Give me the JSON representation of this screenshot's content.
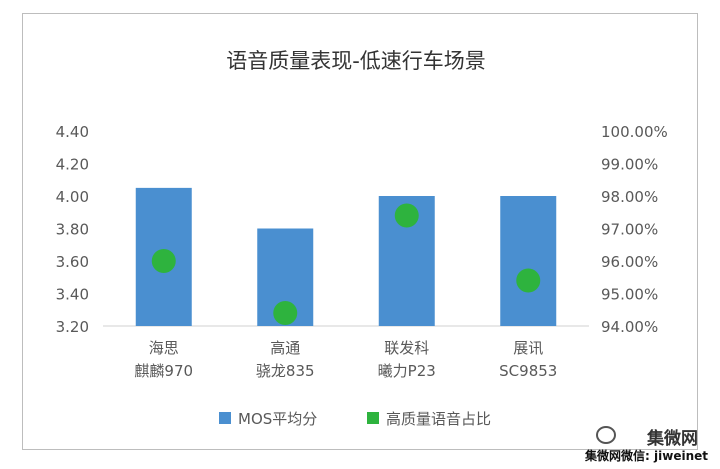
{
  "chart_data": {
    "type": "bar",
    "title": "语音质量表现-低速行车场景",
    "categories": [
      [
        "海思",
        "麒麟970"
      ],
      [
        "高通",
        "骁龙835"
      ],
      [
        "联发科",
        "曦力P23"
      ],
      [
        "展讯",
        "SC9853"
      ]
    ],
    "series": [
      {
        "name": "MOS平均分",
        "type": "bar",
        "axis": "left",
        "color": "#4a8fd0",
        "values": [
          4.05,
          3.8,
          4.0,
          4.0
        ]
      },
      {
        "name": "高质量语音占比",
        "type": "scatter",
        "axis": "right",
        "color": "#2eb33e",
        "values": [
          96.0,
          94.4,
          97.4,
          95.4
        ]
      }
    ],
    "y_left": {
      "min": 3.2,
      "max": 4.4,
      "ticks": [
        "3.20",
        "3.40",
        "3.60",
        "3.80",
        "4.00",
        "4.20",
        "4.40"
      ]
    },
    "y_right": {
      "min": 94.0,
      "max": 100.0,
      "ticks": [
        "94.00%",
        "95.00%",
        "96.00%",
        "97.00%",
        "98.00%",
        "99.00%",
        "100.00%"
      ]
    },
    "legend_position": "bottom",
    "grid": false
  },
  "watermark": {
    "logo": "集微网",
    "line": "集微网微信: jiweinet"
  }
}
